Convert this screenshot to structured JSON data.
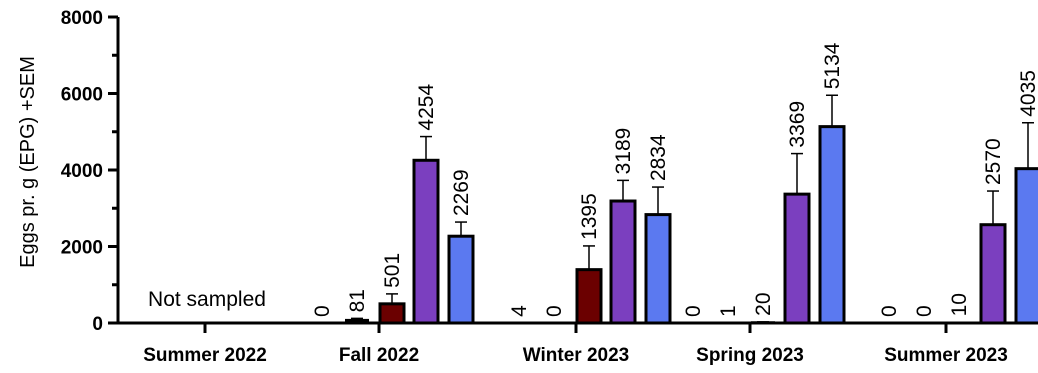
{
  "chart_data": {
    "type": "bar",
    "ylabel": "Eggs pr. g (EPG) +SEM",
    "xlabel": "",
    "ylim": [
      0,
      8000
    ],
    "yticks": [
      0,
      2000,
      4000,
      6000,
      8000
    ],
    "categories": [
      "Summer 2022",
      "Fall 2022",
      "Winter 2023",
      "Spring 2023",
      "Summer 2023"
    ],
    "series_colors": [
      "#6b0000",
      "#7b3fbf",
      "#5b79f0"
    ],
    "groups": [
      {
        "category": "Summer 2022",
        "bars": []
      },
      {
        "category": "Fall 2022",
        "bars": [
          {
            "value": 0,
            "label": "0",
            "sem": 0,
            "series": null
          },
          {
            "value": 81,
            "label": "81",
            "sem": 40,
            "series": null
          },
          {
            "value": 501,
            "label": "501",
            "sem": 260,
            "series": 0
          },
          {
            "value": 4254,
            "label": "4254",
            "sem": 620,
            "series": 1
          },
          {
            "value": 2269,
            "label": "2269",
            "sem": 370,
            "series": 2
          }
        ]
      },
      {
        "category": "Winter 2023",
        "bars": [
          {
            "value": 4,
            "label": "4",
            "sem": 0,
            "series": null
          },
          {
            "value": 0,
            "label": "0",
            "sem": 0,
            "series": null
          },
          {
            "value": 1395,
            "label": "1395",
            "sem": 620,
            "series": 0
          },
          {
            "value": 3189,
            "label": "3189",
            "sem": 540,
            "series": 1
          },
          {
            "value": 2834,
            "label": "2834",
            "sem": 720,
            "series": 2
          }
        ]
      },
      {
        "category": "Spring 2023",
        "bars": [
          {
            "value": 0,
            "label": "0",
            "sem": 0,
            "series": null
          },
          {
            "value": 1,
            "label": "1",
            "sem": 0,
            "series": null
          },
          {
            "value": 20,
            "label": "20",
            "sem": 10,
            "series": null
          },
          {
            "value": 3369,
            "label": "3369",
            "sem": 1060,
            "series": 1
          },
          {
            "value": 5134,
            "label": "5134",
            "sem": 820,
            "series": 2
          }
        ]
      },
      {
        "category": "Summer 2023",
        "bars": [
          {
            "value": 0,
            "label": "0",
            "sem": 0,
            "series": null
          },
          {
            "value": 0,
            "label": "0",
            "sem": 0,
            "series": null
          },
          {
            "value": 10,
            "label": "10",
            "sem": 5,
            "series": null
          },
          {
            "value": 2570,
            "label": "2570",
            "sem": 880,
            "series": 1
          },
          {
            "value": 4035,
            "label": "4035",
            "sem": 1200,
            "series": 2
          }
        ]
      }
    ],
    "annotations": [
      {
        "category": "Summer 2022",
        "text": "Not sampled"
      }
    ],
    "grid": false,
    "legend": "none"
  }
}
